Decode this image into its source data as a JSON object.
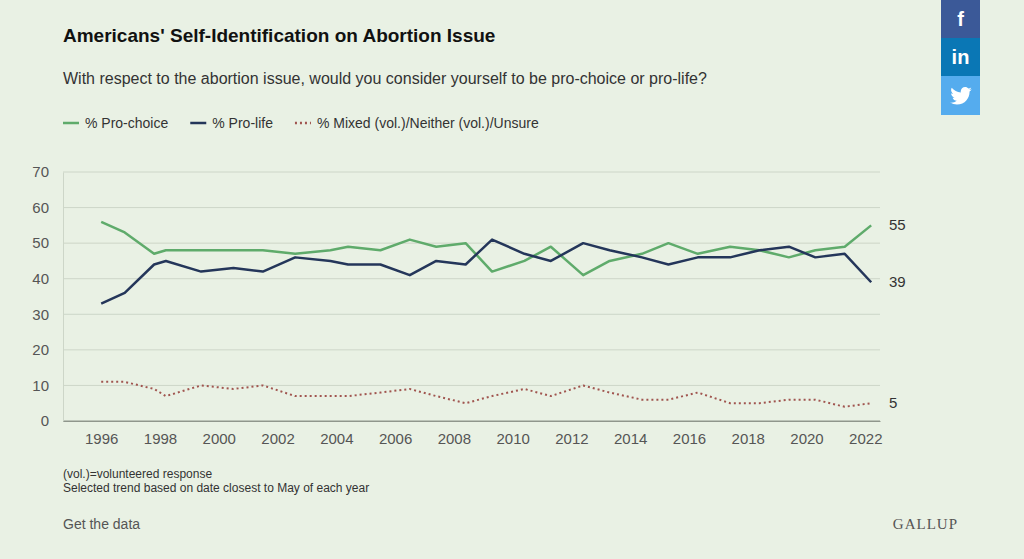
{
  "chart_data": {
    "type": "line",
    "title": "Americans' Self-Identification on Abortion Issue",
    "subtitle": "With respect to the abortion issue, would you consider yourself to be pro-choice or pro-life?",
    "x": [
      1996.0,
      1996.8,
      1997.8,
      1998.2,
      1999.4,
      2000.5,
      2001.5,
      2002.6,
      2003.8,
      2004.4,
      2005.5,
      2006.5,
      2007.4,
      2008.4,
      2009.3,
      2010.4,
      2011.3,
      2012.4,
      2013.3,
      2014.4,
      2015.3,
      2016.3,
      2017.4,
      2018.4,
      2019.4,
      2020.3,
      2021.3,
      2022.2
    ],
    "series": [
      {
        "name": "% Pro-choice",
        "color": "#5fab6b",
        "line_style": "solid",
        "values": [
          56,
          53,
          47,
          48,
          48,
          48,
          48,
          47,
          48,
          49,
          48,
          51,
          49,
          50,
          42,
          45,
          49,
          41,
          45,
          47,
          50,
          47,
          49,
          48,
          46,
          48,
          49,
          55
        ]
      },
      {
        "name": "% Pro-life",
        "color": "#24365a",
        "line_style": "solid",
        "values": [
          33,
          36,
          44,
          45,
          42,
          43,
          42,
          46,
          45,
          44,
          44,
          41,
          45,
          44,
          51,
          47,
          45,
          50,
          48,
          46,
          44,
          46,
          46,
          48,
          49,
          46,
          47,
          39
        ]
      },
      {
        "name": "% Mixed (vol.)/Neither (vol.)/Unsure",
        "color": "#a0554f",
        "line_style": "dotted",
        "values": [
          11,
          11,
          9,
          7,
          10,
          9,
          10,
          7,
          7,
          7,
          8,
          9,
          7,
          5,
          7,
          9,
          7,
          10,
          8,
          6,
          6,
          8,
          5,
          5,
          6,
          6,
          4,
          5
        ]
      }
    ],
    "xlim": [
      1994.7,
      2022.5
    ],
    "xticks": [
      1996,
      1998,
      2000,
      2002,
      2004,
      2006,
      2008,
      2010,
      2012,
      2014,
      2016,
      2018,
      2020,
      2022
    ],
    "ylim": [
      0,
      70
    ],
    "yticks": [
      0,
      10,
      20,
      30,
      40,
      50,
      60,
      70
    ],
    "grid": true,
    "notes": [
      "(vol.)=volunteered response",
      "Selected trend based on date closest to May of each year"
    ],
    "link_text": "Get the data",
    "source": "GALLUP",
    "share": [
      "f",
      "in"
    ]
  }
}
